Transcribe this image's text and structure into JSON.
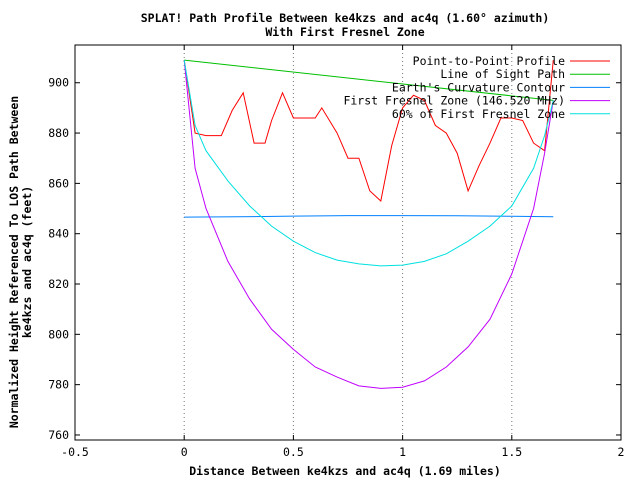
{
  "chart_data": {
    "type": "line",
    "title": "SPLAT! Path Profile Between ke4kzs and ac4q (1.60° azimuth)",
    "subtitle": "With First Fresnel Zone",
    "xlabel": "Distance Between ke4kzs and ac4q (1.69 miles)",
    "ylabel_line1": "Normalized Height Referenced To LOS Path Between",
    "ylabel_line2": "ke4kzs and ac4q (feet)",
    "xlim": [
      -0.5,
      2
    ],
    "ylim": [
      758,
      915
    ],
    "x_ticks": [
      -0.5,
      0,
      0.5,
      1,
      1.5,
      2
    ],
    "x_tick_labels": [
      "-0.5",
      "0",
      "0.5",
      "1",
      "1.5",
      "2"
    ],
    "y_ticks": [
      760,
      780,
      800,
      820,
      840,
      860,
      880,
      900
    ],
    "y_tick_labels": [
      "760",
      "780",
      "800",
      "820",
      "840",
      "860",
      "880",
      "900"
    ],
    "grid": true,
    "grid_x_values": [
      0,
      0.5,
      1,
      1.5
    ],
    "legend_position": "top-right",
    "series": [
      {
        "name": "Point-to-Point Profile",
        "color": "#ff0000",
        "points": [
          [
            0,
            909
          ],
          [
            0.05,
            880
          ],
          [
            0.1,
            879
          ],
          [
            0.17,
            879
          ],
          [
            0.22,
            889
          ],
          [
            0.27,
            896
          ],
          [
            0.32,
            876
          ],
          [
            0.37,
            876
          ],
          [
            0.4,
            885
          ],
          [
            0.45,
            896
          ],
          [
            0.5,
            886
          ],
          [
            0.55,
            886
          ],
          [
            0.6,
            886
          ],
          [
            0.63,
            890
          ],
          [
            0.7,
            880
          ],
          [
            0.75,
            870
          ],
          [
            0.8,
            870
          ],
          [
            0.85,
            857
          ],
          [
            0.9,
            853
          ],
          [
            0.95,
            875
          ],
          [
            1.0,
            890
          ],
          [
            1.05,
            895
          ],
          [
            1.1,
            893
          ],
          [
            1.15,
            883
          ],
          [
            1.2,
            880
          ],
          [
            1.25,
            872
          ],
          [
            1.3,
            857
          ],
          [
            1.35,
            867
          ],
          [
            1.4,
            876
          ],
          [
            1.45,
            886
          ],
          [
            1.5,
            886
          ],
          [
            1.55,
            885
          ],
          [
            1.6,
            876
          ],
          [
            1.65,
            873
          ],
          [
            1.69,
            909
          ]
        ]
      },
      {
        "name": "Line of Sight Path",
        "color": "#00c000",
        "points": [
          [
            0,
            909
          ],
          [
            1.69,
            893
          ]
        ]
      },
      {
        "name": "Earth's Curvature Contour",
        "color": "#0080ff",
        "points": [
          [
            0,
            846.6
          ],
          [
            0.25,
            846.7
          ],
          [
            0.5,
            847.0
          ],
          [
            0.75,
            847.2
          ],
          [
            1.0,
            847.2
          ],
          [
            1.25,
            847.1
          ],
          [
            1.5,
            846.9
          ],
          [
            1.69,
            846.7
          ]
        ]
      },
      {
        "name": "First Fresnel Zone (146.520 MHz)",
        "color": "#c000ff",
        "points": [
          [
            0,
            909
          ],
          [
            0.05,
            866
          ],
          [
            0.1,
            850
          ],
          [
            0.2,
            829
          ],
          [
            0.3,
            814
          ],
          [
            0.4,
            802
          ],
          [
            0.5,
            794
          ],
          [
            0.6,
            787
          ],
          [
            0.7,
            783
          ],
          [
            0.8,
            779.5
          ],
          [
            0.9,
            778.5
          ],
          [
            1.0,
            779
          ],
          [
            1.1,
            781.5
          ],
          [
            1.2,
            787
          ],
          [
            1.3,
            795
          ],
          [
            1.4,
            806
          ],
          [
            1.5,
            824
          ],
          [
            1.6,
            850
          ],
          [
            1.65,
            872
          ],
          [
            1.69,
            893
          ]
        ]
      },
      {
        "name": "60% of First Fresnel Zone",
        "color": "#00e0e0",
        "points": [
          [
            0,
            909
          ],
          [
            0.05,
            883
          ],
          [
            0.1,
            873
          ],
          [
            0.2,
            861
          ],
          [
            0.3,
            851
          ],
          [
            0.4,
            843
          ],
          [
            0.5,
            837
          ],
          [
            0.6,
            832.5
          ],
          [
            0.7,
            829.5
          ],
          [
            0.8,
            828
          ],
          [
            0.9,
            827.2
          ],
          [
            1.0,
            827.5
          ],
          [
            1.1,
            829
          ],
          [
            1.2,
            832
          ],
          [
            1.3,
            837
          ],
          [
            1.4,
            843
          ],
          [
            1.5,
            851
          ],
          [
            1.6,
            866
          ],
          [
            1.65,
            879
          ],
          [
            1.69,
            893
          ]
        ]
      }
    ]
  }
}
